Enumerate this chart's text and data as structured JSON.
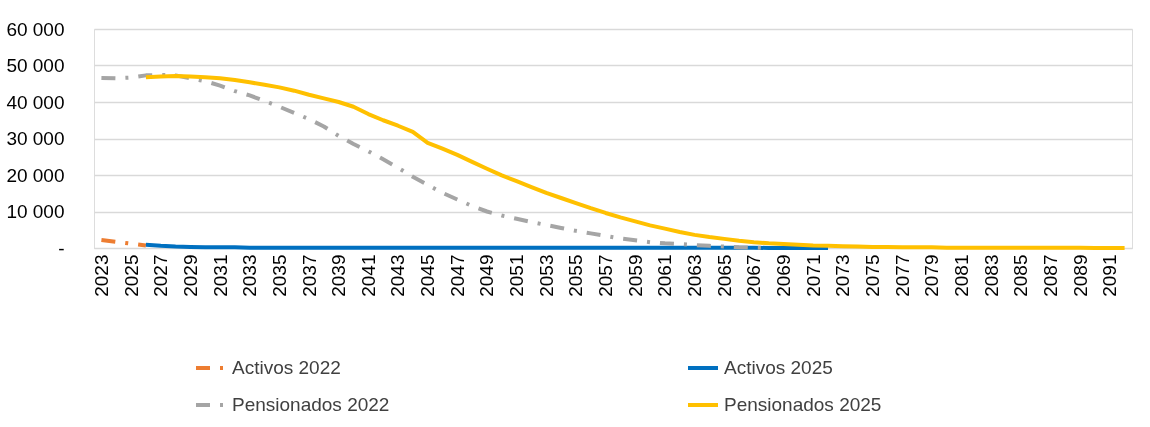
{
  "chart_data": {
    "type": "line",
    "categories": [
      "2023",
      null,
      "2025",
      null,
      "2027",
      null,
      "2029",
      null,
      "2031",
      null,
      "2033",
      null,
      "2035",
      null,
      "2037",
      null,
      "2039",
      null,
      "2041",
      null,
      "2043",
      null,
      "2045",
      null,
      "2047",
      null,
      "2049",
      null,
      "2051",
      null,
      "2053",
      null,
      "2055",
      null,
      "2057",
      null,
      "2059",
      null,
      "2061",
      null,
      "2063",
      null,
      "2065",
      null,
      "2067",
      null,
      "2069",
      null,
      "2071",
      null,
      "2073",
      null,
      "2075",
      null,
      "2077",
      null,
      "2079",
      null,
      "2081",
      null,
      "2083",
      null,
      "2085",
      null,
      "2087",
      null,
      "2089",
      null,
      "2091",
      null
    ],
    "ylim": [
      0,
      60000
    ],
    "yticks": [
      {
        "value": 0,
        "label": "-"
      },
      {
        "value": 10000,
        "label": "10 000"
      },
      {
        "value": 20000,
        "label": "20 000"
      },
      {
        "value": 30000,
        "label": "30 000"
      },
      {
        "value": 40000,
        "label": "40 000"
      },
      {
        "value": 50000,
        "label": "50 000"
      },
      {
        "value": 60000,
        "label": "60 000"
      }
    ],
    "grid": "y",
    "legend": "bottom",
    "marker": "none",
    "series": [
      {
        "name": "Activos 2022",
        "color": "#ed7d31",
        "line_style": "dashed",
        "values": [
          2200,
          1700,
          1200,
          700,
          null,
          null,
          null,
          null,
          null,
          null,
          null,
          null,
          null,
          null,
          null,
          null,
          null,
          null,
          null,
          null,
          null,
          null,
          null,
          null,
          null,
          null,
          null,
          null,
          null,
          null,
          null,
          null,
          null,
          null,
          null,
          null,
          null,
          null,
          null,
          null,
          null,
          null,
          null,
          null,
          null,
          null,
          null,
          null,
          null,
          null,
          null,
          null,
          null,
          null,
          null,
          null,
          null,
          null,
          null,
          null,
          null,
          null,
          null,
          null,
          null,
          null,
          null,
          null,
          null,
          null
        ]
      },
      {
        "name": "Activos 2025",
        "color": "#0070c0",
        "line_style": "solid",
        "values": [
          null,
          null,
          null,
          900,
          600,
          400,
          300,
          200,
          200,
          200,
          100,
          100,
          100,
          100,
          100,
          100,
          100,
          100,
          100,
          100,
          100,
          100,
          100,
          100,
          100,
          100,
          100,
          100,
          100,
          100,
          100,
          100,
          100,
          100,
          100,
          100,
          100,
          100,
          100,
          100,
          100,
          100,
          100,
          100,
          100,
          0,
          0,
          0,
          0,
          0,
          null,
          null,
          null,
          null,
          null,
          null,
          null,
          null,
          null,
          null,
          null,
          null,
          null,
          null,
          null,
          null,
          null,
          null,
          null,
          null
        ]
      },
      {
        "name": "Pensionados 2022",
        "color": "#a5a5a5",
        "line_style": "dashed",
        "values": [
          46600,
          46500,
          46700,
          47300,
          47400,
          47300,
          46500,
          45700,
          44500,
          43000,
          41800,
          40300,
          38700,
          37000,
          35300,
          33300,
          30700,
          28500,
          26500,
          24300,
          22000,
          19500,
          17300,
          15100,
          13300,
          11500,
          10000,
          8900,
          8000,
          7100,
          6300,
          5500,
          4700,
          4000,
          3300,
          2600,
          2100,
          1600,
          1300,
          1100,
          800,
          600,
          400,
          200,
          100,
          0,
          null,
          null,
          null,
          null,
          null,
          null,
          null,
          null,
          null,
          null,
          null,
          null,
          null,
          null,
          null,
          null,
          null,
          null,
          null,
          null,
          null,
          null,
          null,
          null
        ]
      },
      {
        "name": "Pensionados 2025",
        "color": "#ffc000",
        "line_style": "solid",
        "values": [
          null,
          null,
          null,
          46800,
          47000,
          47100,
          47000,
          46800,
          46500,
          46000,
          45400,
          44700,
          44000,
          43100,
          42000,
          41000,
          40000,
          38700,
          36700,
          35000,
          33500,
          31800,
          28800,
          27200,
          25500,
          23600,
          21700,
          19900,
          18300,
          16700,
          15100,
          13700,
          12300,
          10900,
          9600,
          8400,
          7300,
          6200,
          5300,
          4400,
          3600,
          3000,
          2500,
          2000,
          1600,
          1300,
          1100,
          900,
          700,
          600,
          500,
          400,
          300,
          300,
          200,
          200,
          200,
          100,
          100,
          100,
          100,
          100,
          100,
          100,
          100,
          100,
          100,
          0,
          0,
          0
        ]
      }
    ]
  }
}
